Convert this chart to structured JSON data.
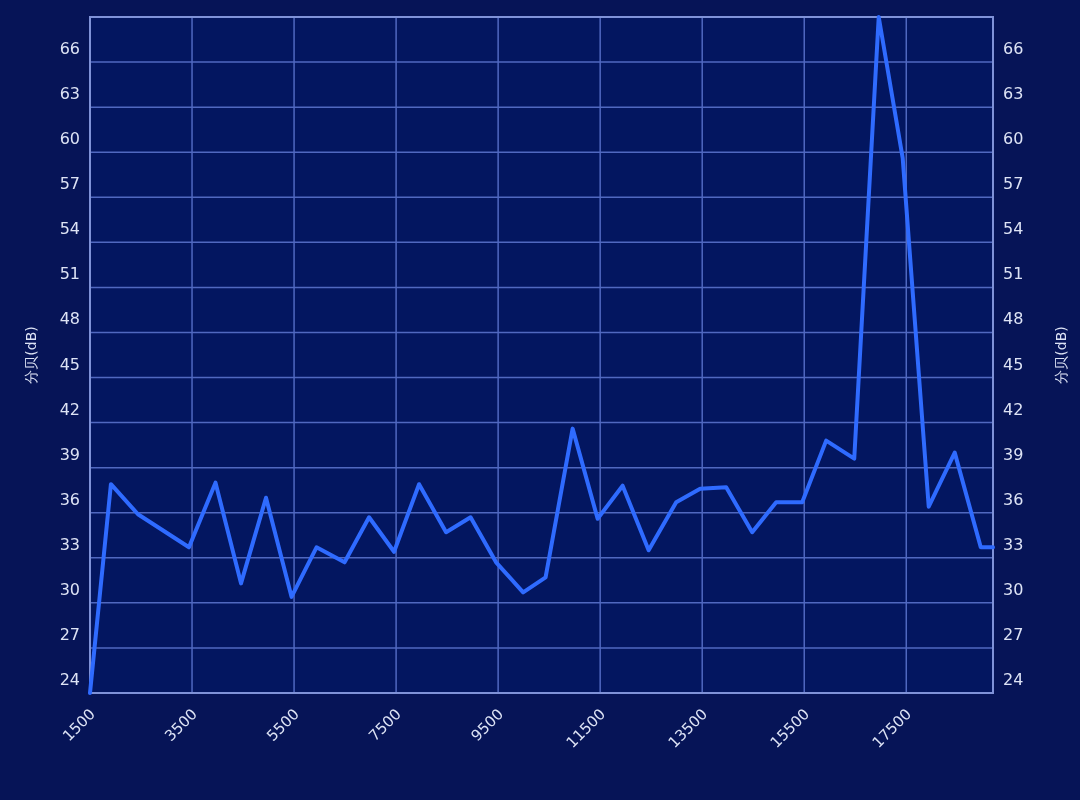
{
  "chart_data": {
    "type": "line",
    "ylabel": "分贝(dB)",
    "y2label": "分贝(dB)",
    "x": [
      1500,
      1910,
      2440,
      3440,
      3960,
      4460,
      4950,
      5450,
      5940,
      6490,
      6970,
      7460,
      7950,
      8480,
      8960,
      9460,
      9990,
      10430,
      10960,
      11450,
      11940,
      12450,
      12990,
      13460,
      13970,
      14480,
      14950,
      15460,
      15930,
      16480,
      16960,
      17430,
      17940,
      18450,
      18960,
      19200
    ],
    "series": [
      {
        "color": "#2f6bff",
        "values": [
          24,
          37.9,
          35.9,
          33.7,
          38,
          31.3,
          37,
          30.4,
          33.7,
          32.7,
          35.7,
          33.4,
          37.9,
          34.7,
          35.7,
          32.7,
          30.7,
          31.7,
          41.6,
          35.6,
          37.8,
          33.5,
          36.7,
          37.6,
          37.7,
          34.7,
          36.7,
          36.7,
          40.8,
          39.6,
          69,
          59.6,
          36.4,
          40,
          33.7,
          33.7
        ]
      }
    ],
    "xlim": [
      1500,
      19200
    ],
    "xticks": [
      1500,
      3500,
      5500,
      7500,
      9500,
      11500,
      13500,
      15500,
      17500
    ],
    "ylim": [
      24,
      69
    ],
    "yticks": [
      24,
      27,
      30,
      33,
      36,
      39,
      42,
      45,
      48,
      51,
      54,
      57,
      60,
      63,
      66
    ],
    "y2lim": [
      24,
      69
    ],
    "y2ticks": [
      24,
      27,
      30,
      33,
      36,
      39,
      42,
      45,
      48,
      51,
      54,
      57,
      60,
      63,
      66
    ],
    "grid": true,
    "line_style": "solid"
  }
}
